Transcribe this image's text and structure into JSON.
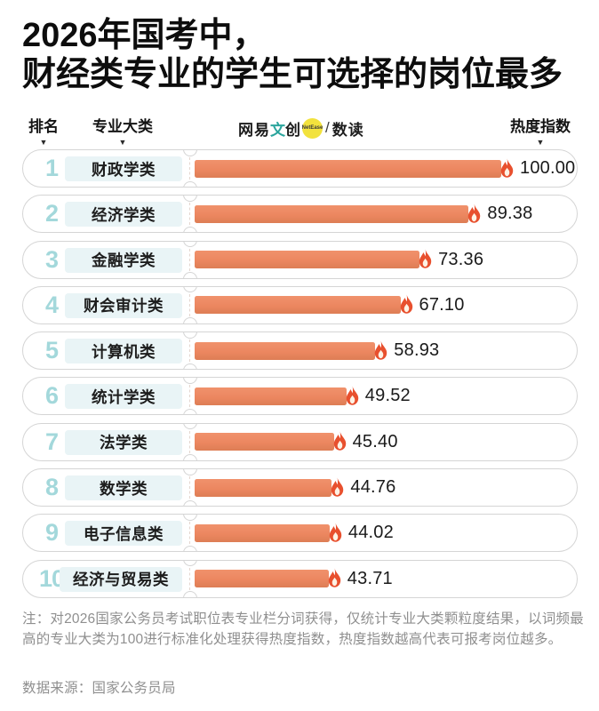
{
  "title": "2026年国考中，\n财经类专业的学生可选择的岗位最多",
  "header": {
    "rank_label": "排名",
    "category_label": "专业大类",
    "heat_label": "热度指数",
    "sort_arrow": "▼"
  },
  "logo": {
    "part1": "网易",
    "part2": "文",
    "part3": "创",
    "badge": "NetEase",
    "slash": "/",
    "part4": "数读"
  },
  "chart_data": {
    "type": "bar",
    "orientation": "horizontal",
    "title": "2026年国考中，财经类专业的学生可选择的岗位最多",
    "xlabel": "热度指数",
    "ylabel": "专业大类",
    "xlim": [
      0,
      100
    ],
    "grid": false,
    "categories": [
      "财政学类",
      "经济学类",
      "金融学类",
      "财会审计类",
      "计算机类",
      "统计学类",
      "法学类",
      "数学类",
      "电子信息类",
      "经济与贸易类"
    ],
    "values": [
      100.0,
      89.38,
      73.36,
      67.1,
      58.93,
      49.52,
      45.4,
      44.76,
      44.02,
      43.71
    ],
    "rows": [
      {
        "rank": "1",
        "category": "财政学类",
        "value": 100.0,
        "label": "100.00"
      },
      {
        "rank": "2",
        "category": "经济学类",
        "value": 89.38,
        "label": "89.38"
      },
      {
        "rank": "3",
        "category": "金融学类",
        "value": 73.36,
        "label": "73.36"
      },
      {
        "rank": "4",
        "category": "财会审计类",
        "value": 67.1,
        "label": "67.10"
      },
      {
        "rank": "5",
        "category": "计算机类",
        "value": 58.93,
        "label": "58.93"
      },
      {
        "rank": "6",
        "category": "统计学类",
        "value": 49.52,
        "label": "49.52"
      },
      {
        "rank": "7",
        "category": "法学类",
        "value": 45.4,
        "label": "45.40"
      },
      {
        "rank": "8",
        "category": "数学类",
        "value": 44.76,
        "label": "44.76"
      },
      {
        "rank": "9",
        "category": "电子信息类",
        "value": 44.02,
        "label": "44.02"
      },
      {
        "rank": "10",
        "category": "经济与贸易类",
        "value": 43.71,
        "label": "43.71"
      }
    ]
  },
  "notes": "注：对2026国家公务员考试职位表专业栏分词获得，仅统计专业大类颗粒度结果，以词频最高的专业大类为100进行标准化处理获得热度指数，热度指数越高代表可报考岗位越多。",
  "source": "数据来源：国家公务员局",
  "colors": {
    "bar": "#ec8760",
    "flame": "#e8502e",
    "flame_inner": "#fdf2e4",
    "rank_number": "#a3d8db",
    "category_bg": "#e9f4f6",
    "pill_border": "#d5d5d5",
    "logo_badge": "#f2e23d",
    "logo_accent": "#2ba59d",
    "note_text": "#8f8f8f"
  }
}
